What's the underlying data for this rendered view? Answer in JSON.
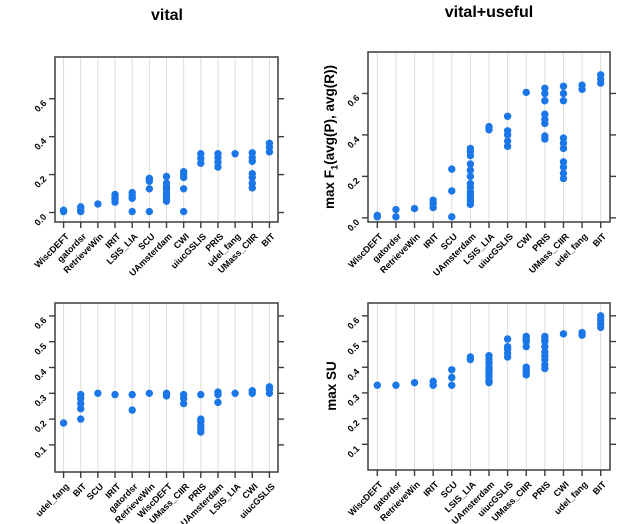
{
  "figure": {
    "background": "#ffffff",
    "point_color": "#1b76e8",
    "grid_color": "#dcdcdc",
    "axis_color": "#3c3c3c",
    "text_color": "#000000"
  },
  "chart_data": [
    {
      "id": "vital-f1",
      "type": "scatter",
      "title": "vital",
      "ylabel": "",
      "ylabel_parts": [],
      "grid": true,
      "legend": "none",
      "yticks": [
        0.0,
        0.2,
        0.4,
        0.6
      ],
      "ylim": [
        -0.05,
        0.82
      ],
      "categories": [
        "WiscDEFT",
        "gatordsr",
        "RetrieveWin",
        "IRIT",
        "LSIS_LIA",
        "SCU",
        "UAmsterdam",
        "CWI",
        "uiucGSLIS",
        "PRIS",
        "udel_fang",
        "UMass_CIIR",
        "BIT"
      ],
      "values": [
        [
          0.005,
          0.012
        ],
        [
          0.005,
          0.015,
          0.03
        ],
        [
          0.045
        ],
        [
          0.055,
          0.07,
          0.08,
          0.095
        ],
        [
          0.005,
          0.075,
          0.09,
          0.105
        ],
        [
          0.005,
          0.125,
          0.165,
          0.18
        ],
        [
          0.06,
          0.075,
          0.09,
          0.105,
          0.12,
          0.135,
          0.155,
          0.19
        ],
        [
          0.005,
          0.125,
          0.185,
          0.2,
          0.215
        ],
        [
          0.26,
          0.285,
          0.31
        ],
        [
          0.24,
          0.265,
          0.29,
          0.31
        ],
        [
          0.31
        ],
        [
          0.13,
          0.155,
          0.185,
          0.205,
          0.27,
          0.29,
          0.315
        ],
        [
          0.32,
          0.345,
          0.365
        ]
      ]
    },
    {
      "id": "vital-useful-f1",
      "type": "scatter",
      "title": "vital+useful",
      "ylabel": "max F1(avg(P), avg(R))",
      "ylabel_parts": [
        {
          "text": "max F"
        },
        {
          "text": "1",
          "sub": true
        },
        {
          "text": "(avg(P), avg(R))"
        }
      ],
      "grid": true,
      "legend": "none",
      "yticks": [
        0.0,
        0.2,
        0.4,
        0.6
      ],
      "ylim": [
        -0.02,
        0.8
      ],
      "categories": [
        "WiscDEFT",
        "gatordsr",
        "RetrieveWin",
        "IRIT",
        "SCU",
        "UAmsterdam",
        "LSIS_LIA",
        "uiucGSLIS",
        "CWI",
        "PRIS",
        "UMass_CIIR",
        "udel_fang",
        "BIT"
      ],
      "values": [
        [
          0.005,
          0.012
        ],
        [
          0.005,
          0.04
        ],
        [
          0.045
        ],
        [
          0.05,
          0.07,
          0.085
        ],
        [
          0.005,
          0.13,
          0.235
        ],
        [
          0.065,
          0.08,
          0.095,
          0.11,
          0.125,
          0.145,
          0.165,
          0.2,
          0.23,
          0.26,
          0.3,
          0.32,
          0.335
        ],
        [
          0.425,
          0.44
        ],
        [
          0.345,
          0.37,
          0.4,
          0.42,
          0.49
        ],
        [
          0.605
        ],
        [
          0.38,
          0.395,
          0.455,
          0.475,
          0.5,
          0.565,
          0.6,
          0.625
        ],
        [
          0.19,
          0.215,
          0.245,
          0.27,
          0.335,
          0.36,
          0.385,
          0.565,
          0.6,
          0.635
        ],
        [
          0.62,
          0.64
        ],
        [
          0.65,
          0.67,
          0.69
        ]
      ]
    },
    {
      "id": "vital-su",
      "type": "scatter",
      "title": "",
      "ylabel": "",
      "ylabel_parts": [],
      "grid": true,
      "legend": "none",
      "yticks": [
        0.1,
        0.2,
        0.3,
        0.4,
        0.5,
        0.6
      ],
      "ylim": [
        -0.005,
        0.65
      ],
      "categories": [
        "udel_fang",
        "BIT",
        "SCU",
        "IRIT",
        "gatordsr",
        "RetrieveWin",
        "WiscDEFT",
        "UMass_CIIR",
        "PRIS",
        "UAmsterdam",
        "LSIS_LIA",
        "CWI",
        "uiucGSLIS"
      ],
      "values": [
        [
          0.185
        ],
        [
          0.2,
          0.24,
          0.26,
          0.28,
          0.295
        ],
        [
          0.3
        ],
        [
          0.295
        ],
        [
          0.235,
          0.295
        ],
        [
          0.3
        ],
        [
          0.29,
          0.3
        ],
        [
          0.26,
          0.28,
          0.295
        ],
        [
          0.15,
          0.16,
          0.175,
          0.19,
          0.2,
          0.295
        ],
        [
          0.265,
          0.295,
          0.305
        ],
        [
          0.3
        ],
        [
          0.3,
          0.31
        ],
        [
          0.3,
          0.315,
          0.325
        ]
      ]
    },
    {
      "id": "vital-useful-su",
      "type": "scatter",
      "title": "",
      "ylabel": "max SU",
      "ylabel_parts": [
        {
          "text": "max SU"
        }
      ],
      "grid": true,
      "legend": "none",
      "yticks": [
        0.1,
        0.2,
        0.3,
        0.4,
        0.5,
        0.6
      ],
      "ylim": [
        0.0,
        0.65
      ],
      "categories": [
        "WiscDEFT",
        "gatordsr",
        "RetrieveWin",
        "IRIT",
        "SCU",
        "LSIS_LIA",
        "UAmsterdam",
        "uiucGSLIS",
        "UMass_CIIR",
        "PRIS",
        "CWI",
        "udel_fang",
        "BIT"
      ],
      "values": [
        [
          0.33
        ],
        [
          0.33
        ],
        [
          0.34
        ],
        [
          0.33,
          0.345
        ],
        [
          0.33,
          0.36,
          0.39
        ],
        [
          0.43,
          0.44
        ],
        [
          0.34,
          0.35,
          0.365,
          0.38,
          0.39,
          0.4,
          0.415,
          0.43,
          0.445
        ],
        [
          0.44,
          0.455,
          0.47,
          0.48,
          0.51
        ],
        [
          0.37,
          0.38,
          0.39,
          0.4,
          0.48,
          0.5,
          0.51,
          0.52
        ],
        [
          0.395,
          0.41,
          0.43,
          0.445,
          0.46,
          0.48,
          0.5,
          0.51,
          0.52
        ],
        [
          0.53
        ],
        [
          0.525,
          0.535
        ],
        [
          0.555,
          0.57,
          0.585,
          0.6
        ]
      ]
    }
  ]
}
